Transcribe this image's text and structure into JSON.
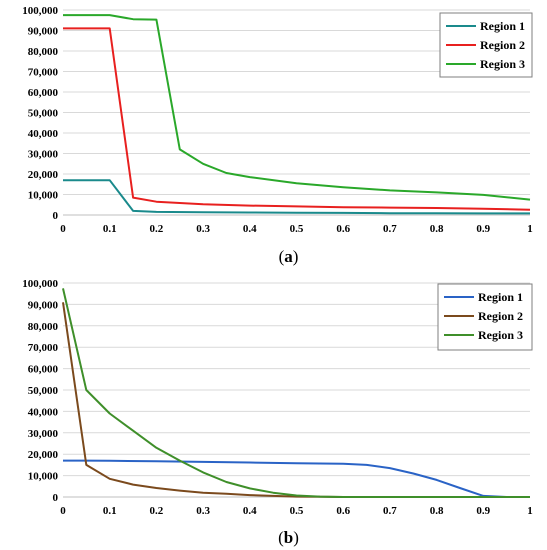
{
  "chart_data": [
    {
      "id": "a",
      "panel_label": [
        "(",
        "a",
        ")"
      ],
      "type": "line",
      "xlim": [
        0,
        1
      ],
      "ylim": [
        0,
        100000
      ],
      "x_ticks": [
        "0",
        "0.1",
        "0.2",
        "0.3",
        "0.4",
        "0.5",
        "0.6",
        "0.7",
        "0.8",
        "0.9",
        "1"
      ],
      "y_ticks": [
        "0",
        "10,000",
        "20,000",
        "30,000",
        "40,000",
        "50,000",
        "60,000",
        "70,000",
        "80,000",
        "90,000",
        "100,000"
      ],
      "grid": "horizontal",
      "legend_position": "top-right",
      "series": [
        {
          "name": "Region 1",
          "color": "#1a8a8c",
          "x": [
            0,
            0.1,
            0.15,
            0.2,
            0.3,
            0.4,
            0.5,
            0.6,
            0.7,
            0.8,
            0.9,
            1.0
          ],
          "y": [
            17000,
            17000,
            2000,
            1500,
            1300,
            1200,
            1100,
            1000,
            900,
            900,
            800,
            800
          ]
        },
        {
          "name": "Region 2",
          "color": "#e8201f",
          "x": [
            0,
            0.1,
            0.15,
            0.2,
            0.3,
            0.4,
            0.5,
            0.6,
            0.7,
            0.8,
            0.9,
            1.0
          ],
          "y": [
            91000,
            91000,
            8500,
            6500,
            5200,
            4600,
            4200,
            3800,
            3600,
            3400,
            3000,
            2600
          ]
        },
        {
          "name": "Region 3",
          "color": "#2aa82a",
          "x": [
            0,
            0.1,
            0.15,
            0.2,
            0.25,
            0.3,
            0.35,
            0.4,
            0.5,
            0.6,
            0.7,
            0.8,
            0.9,
            1.0
          ],
          "y": [
            97500,
            97500,
            95500,
            95300,
            32000,
            25000,
            20500,
            18500,
            15500,
            13500,
            12000,
            11000,
            9800,
            7500
          ]
        }
      ]
    },
    {
      "id": "b",
      "panel_label": [
        "(",
        "b",
        ")"
      ],
      "type": "line",
      "xlim": [
        0,
        1
      ],
      "ylim": [
        0,
        100000
      ],
      "x_ticks": [
        "0",
        "0.1",
        "0.2",
        "0.3",
        "0.4",
        "0.5",
        "0.6",
        "0.7",
        "0.8",
        "0.9",
        "1"
      ],
      "y_ticks": [
        "0",
        "10,000",
        "20,000",
        "30,000",
        "40,000",
        "50,000",
        "60,000",
        "70,000",
        "80,000",
        "90,000",
        "100,000"
      ],
      "grid": "horizontal",
      "legend_position": "top-right",
      "series": [
        {
          "name": "Region 1",
          "color": "#2a63c6",
          "x": [
            0,
            0.05,
            0.1,
            0.2,
            0.3,
            0.4,
            0.5,
            0.6,
            0.65,
            0.7,
            0.75,
            0.8,
            0.85,
            0.9,
            0.95,
            1.0
          ],
          "y": [
            17000,
            17000,
            16900,
            16700,
            16400,
            16100,
            15800,
            15500,
            15000,
            13500,
            11000,
            8000,
            4200,
            500,
            0,
            0
          ]
        },
        {
          "name": "Region 2",
          "color": "#7b4a1d",
          "x": [
            0,
            0.05,
            0.1,
            0.15,
            0.2,
            0.25,
            0.3,
            0.35,
            0.4,
            0.45,
            0.5,
            0.55,
            0.6,
            0.7,
            0.8,
            0.9,
            1.0
          ],
          "y": [
            91000,
            15000,
            8500,
            5800,
            4200,
            3000,
            2000,
            1500,
            900,
            500,
            200,
            100,
            0,
            0,
            0,
            0,
            0
          ]
        },
        {
          "name": "Region 3",
          "color": "#3f8f2a",
          "x": [
            0,
            0.05,
            0.1,
            0.15,
            0.2,
            0.25,
            0.3,
            0.35,
            0.4,
            0.45,
            0.5,
            0.55,
            0.6,
            0.7,
            0.8,
            0.9,
            1.0
          ],
          "y": [
            97500,
            50000,
            39000,
            31000,
            23000,
            17000,
            11500,
            7000,
            4000,
            2000,
            700,
            200,
            0,
            0,
            0,
            0,
            0
          ]
        }
      ]
    }
  ]
}
